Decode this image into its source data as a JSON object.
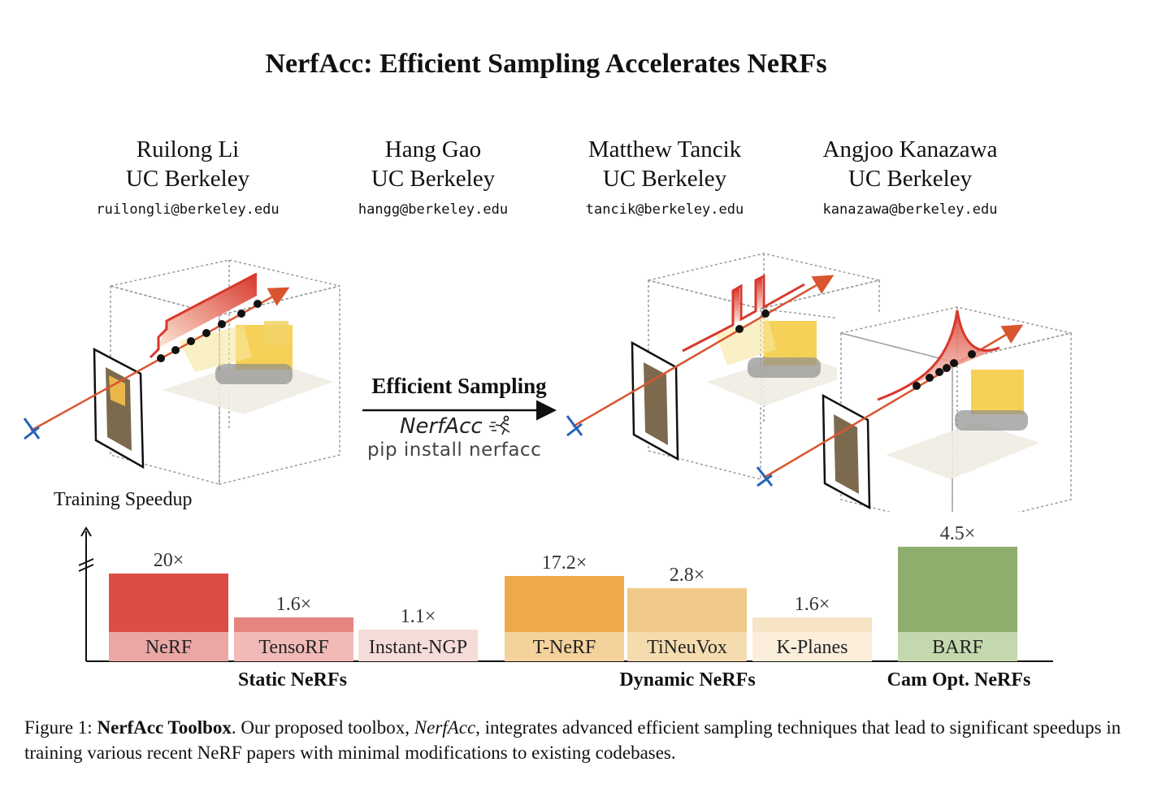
{
  "title": "NerfAcc: Efficient Sampling Accelerates NeRFs",
  "authors": [
    {
      "name": "Ruilong Li",
      "affiliation": "UC Berkeley",
      "email": "ruilongli@berkeley.edu"
    },
    {
      "name": "Hang Gao",
      "affiliation": "UC Berkeley",
      "email": "hangg@berkeley.edu"
    },
    {
      "name": "Matthew Tancik",
      "affiliation": "UC Berkeley",
      "email": "tancik@berkeley.edu"
    },
    {
      "name": "Angjoo Kanazawa",
      "affiliation": "UC Berkeley",
      "email": "kanazawa@berkeley.edu"
    }
  ],
  "figure": {
    "arrow_label": "Efficient Sampling",
    "logo_text": "NerfAcc",
    "install_text": "pip install nerfacc"
  },
  "chart_data": {
    "type": "bar",
    "title": "",
    "ylabel": "Training Speedup",
    "xlabel": "",
    "categories": [
      "NeRF",
      "TensoRF",
      "Instant-NGP",
      "T-NeRF",
      "TiNeuVox",
      "K-Planes",
      "BARF"
    ],
    "values": [
      20,
      1.6,
      1.1,
      17.2,
      2.8,
      1.6,
      4.5
    ],
    "value_labels": [
      "20×",
      "1.6×",
      "1.1×",
      "17.2×",
      "2.8×",
      "1.6×",
      "4.5×"
    ],
    "axis_break": true,
    "groups": [
      {
        "name": "Static NeRFs",
        "members": [
          "NeRF",
          "TensoRF",
          "Instant-NGP"
        ]
      },
      {
        "name": "Dynamic NeRFs",
        "members": [
          "T-NeRF",
          "TiNeuVox",
          "K-Planes"
        ]
      },
      {
        "name": "Cam Opt. NeRFs",
        "members": [
          "BARF"
        ]
      }
    ],
    "colors": {
      "NeRF": "#dd4d45",
      "TensoRF": "#e6847f",
      "Instant-NGP": "#f6dcd8",
      "T-NeRF": "#eeaa4a",
      "TiNeuVox": "#f0c98a",
      "K-Planes": "#f7e4c5",
      "BARF": "#8fae6d"
    },
    "label_colors": {
      "NeRF": "#eba7a3",
      "TensoRF": "#f1bab6",
      "Instant-NGP": "#f6dcd8",
      "T-NeRF": "#f4d29c",
      "TiNeuVox": "#f5dcaf",
      "K-Planes": "#faeedb",
      "BARF": "#c3d8ad"
    }
  },
  "caption": {
    "label": "Figure 1:",
    "bold": "NerfAcc Toolbox",
    "pre": ". Our proposed toolbox, ",
    "italic": "NerfAcc",
    "post": ", integrates advanced efficient sampling techniques that lead to significant speedups in training various recent NeRF papers with minimal modifications to existing codebases."
  }
}
